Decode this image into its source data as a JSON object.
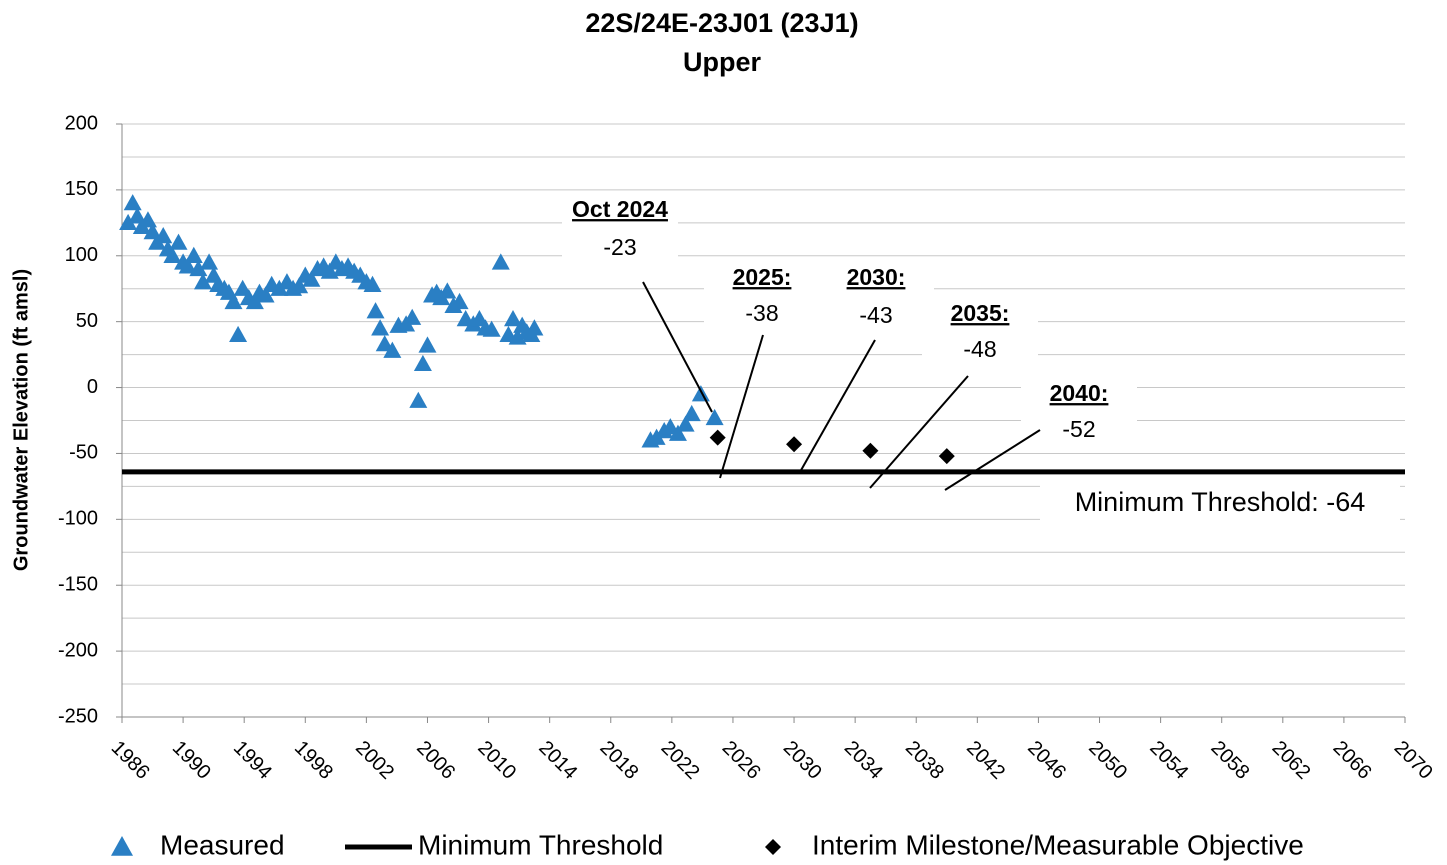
{
  "chart_data": {
    "type": "scatter",
    "title": "22S/24E-23J01 (23J1)",
    "subtitle": "Upper",
    "y_label": "Groundwater Elevation (ft amsl)",
    "xlim": [
      1986,
      2070
    ],
    "xticks": [
      1986,
      1990,
      1994,
      1998,
      2002,
      2006,
      2010,
      2014,
      2018,
      2022,
      2026,
      2030,
      2034,
      2038,
      2042,
      2046,
      2050,
      2054,
      2058,
      2062,
      2066,
      2070
    ],
    "ylim": [
      -250,
      200
    ],
    "yticks": [
      -250,
      -200,
      -150,
      -100,
      -50,
      0,
      50,
      100,
      150,
      200
    ],
    "minor_yticks": [
      -225,
      -175,
      -125,
      -75,
      -25,
      25,
      75,
      125,
      175
    ],
    "grid": true,
    "series": [
      {
        "name": "Measured",
        "color": "#2a7fc4",
        "marker": "triangle",
        "x": [
          1986.4,
          1986.7,
          1987.0,
          1987.3,
          1987.7,
          1988.0,
          1988.3,
          1988.7,
          1989.0,
          1989.3,
          1989.7,
          1990.0,
          1990.3,
          1990.7,
          1991.0,
          1991.3,
          1991.7,
          1992.0,
          1992.3,
          1992.7,
          1993.0,
          1993.3,
          1993.6,
          1993.9,
          1994.3,
          1994.7,
          1995.0,
          1995.4,
          1995.8,
          1996.3,
          1996.8,
          1997.2,
          1997.6,
          1998.0,
          1998.4,
          1998.8,
          1999.2,
          1999.6,
          2000.0,
          2000.4,
          2000.8,
          2001.2,
          2001.6,
          2002.0,
          2002.4,
          2002.6,
          2002.9,
          2003.2,
          2003.7,
          2004.1,
          2004.6,
          2005.0,
          2005.4,
          2005.7,
          2006.0,
          2006.3,
          2006.6,
          2006.9,
          2007.3,
          2007.7,
          2008.1,
          2008.5,
          2009.0,
          2009.4,
          2009.8,
          2010.2,
          2010.8,
          2011.3,
          2011.6,
          2011.9,
          2012.2,
          2012.5,
          2012.8,
          2013.0,
          2020.6,
          2021.0,
          2021.5,
          2021.9,
          2022.4,
          2022.9,
          2023.3,
          2023.9,
          2024.8
        ],
        "values": [
          125,
          140,
          130,
          122,
          127,
          118,
          110,
          115,
          105,
          100,
          110,
          95,
          92,
          100,
          90,
          80,
          95,
          85,
          78,
          75,
          72,
          65,
          40,
          75,
          68,
          65,
          72,
          70,
          78,
          75,
          80,
          75,
          77,
          85,
          82,
          90,
          92,
          88,
          95,
          90,
          92,
          88,
          85,
          80,
          78,
          58,
          45,
          33,
          28,
          47,
          48,
          53,
          -10,
          18,
          32,
          70,
          72,
          68,
          73,
          62,
          65,
          52,
          48,
          52,
          45,
          44,
          95,
          40,
          52,
          38,
          47,
          42,
          40,
          45,
          -40,
          -38,
          -33,
          -30,
          -35,
          -28,
          -20,
          -5,
          -23
        ]
      },
      {
        "name": "Minimum Threshold",
        "color": "#000000",
        "marker": "line",
        "x": [
          1986,
          2070
        ],
        "values": [
          -64,
          -64
        ]
      },
      {
        "name": "Interim Milestone/Measurable Objective",
        "color": "#000000",
        "marker": "diamond",
        "x": [
          2025,
          2030,
          2035,
          2040
        ],
        "values": [
          -38,
          -43,
          -48,
          -52
        ]
      }
    ],
    "annotations": [
      {
        "title": "Oct 2024"
      },
      {
        "title": "2025:"
      },
      {
        "title": "2030:"
      },
      {
        "title": "2035:"
      },
      {
        "title": "2040:"
      }
    ],
    "threshold_label": "Minimum Threshold: -64"
  }
}
